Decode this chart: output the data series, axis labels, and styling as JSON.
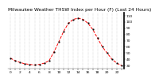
{
  "title": "Milwaukee Weather THSW Index per Hour (F) (Last 24 Hours)",
  "hours": [
    0,
    1,
    2,
    3,
    4,
    5,
    6,
    7,
    8,
    9,
    10,
    11,
    12,
    13,
    14,
    15,
    16,
    17,
    18,
    19,
    20,
    21,
    22,
    23
  ],
  "values": [
    42,
    38,
    35,
    33,
    32,
    31,
    32,
    34,
    38,
    52,
    68,
    85,
    98,
    104,
    106,
    104,
    98,
    88,
    74,
    60,
    50,
    40,
    34,
    30
  ],
  "line_color": "#ff0000",
  "marker_color": "#000000",
  "bg_color": "#ffffff",
  "plot_bg": "#ffffff",
  "grid_color": "#888888",
  "title_fontsize": 4.2,
  "tick_fontsize": 3.2,
  "ylim": [
    25,
    115
  ],
  "yticks": [
    30,
    40,
    50,
    60,
    70,
    80,
    90,
    100,
    110
  ],
  "xtick_step": 1
}
